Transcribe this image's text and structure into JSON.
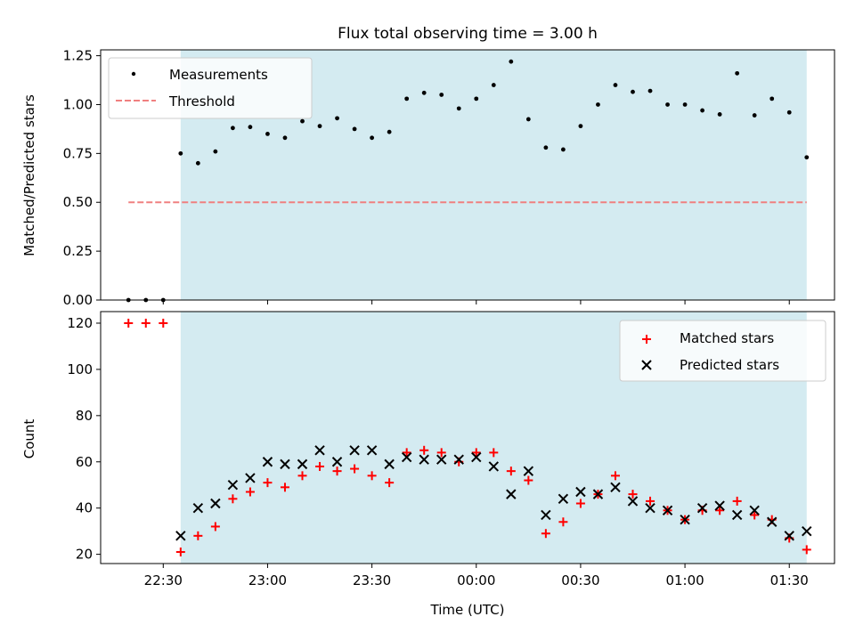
{
  "chart_data": [
    {
      "type": "scatter",
      "title": "Flux total observing time = 3.00 h",
      "xlabel": "",
      "ylabel": "Matched/Predicted stars",
      "ylim": [
        0,
        1.28
      ],
      "yticks": [
        0,
        0.25,
        0.5,
        0.75,
        1.0,
        1.25
      ],
      "ytick_labels": [
        "0.00",
        "0.25",
        "0.50",
        "0.75",
        "1.00",
        "1.25"
      ],
      "legend_placement": "top-left",
      "series": [
        {
          "name": "Measurements",
          "marker": "dot",
          "color": "#000000",
          "x": [
            "22:20",
            "22:25",
            "22:30",
            "22:35",
            "22:40",
            "22:45",
            "22:50",
            "22:55",
            "23:00",
            "23:05",
            "23:10",
            "23:15",
            "23:20",
            "23:25",
            "23:30",
            "23:35",
            "23:40",
            "23:45",
            "23:50",
            "23:55",
            "00:00",
            "00:05",
            "00:10",
            "00:15",
            "00:20",
            "00:25",
            "00:30",
            "00:35",
            "00:40",
            "00:45",
            "00:50",
            "00:55",
            "01:00",
            "01:05",
            "01:10",
            "01:15",
            "01:20",
            "01:25",
            "01:30",
            "01:35"
          ],
          "values": [
            0.0,
            0.0,
            0.0,
            0.75,
            0.7,
            0.76,
            0.88,
            0.885,
            0.85,
            0.83,
            0.915,
            0.89,
            0.93,
            0.875,
            0.83,
            0.86,
            1.03,
            1.06,
            1.05,
            0.98,
            1.03,
            1.1,
            1.22,
            0.925,
            0.78,
            0.77,
            0.89,
            1.0,
            1.1,
            1.065,
            1.07,
            1.0,
            1.0,
            0.97,
            0.95,
            1.16,
            0.945,
            1.03,
            0.96,
            0.73
          ]
        },
        {
          "name": "Threshold",
          "marker": "dashed-line",
          "color": "#f08080",
          "x": [
            "22:20",
            "01:35"
          ],
          "values": [
            0.5,
            0.5
          ]
        }
      ],
      "shaded_span": [
        "22:35",
        "01:35"
      ],
      "shade_color": "#d4ebf1"
    },
    {
      "type": "scatter",
      "xlabel": "Time (UTC)",
      "ylabel": "Count",
      "ylim": [
        16,
        125
      ],
      "yticks": [
        20,
        40,
        60,
        80,
        100,
        120
      ],
      "xlim": [
        "22:12",
        "01:43"
      ],
      "xtick_labels": [
        "22:30",
        "23:00",
        "23:30",
        "00:00",
        "00:30",
        "01:00",
        "01:30"
      ],
      "legend_placement": "top-right",
      "series": [
        {
          "name": "Matched stars",
          "marker": "plus",
          "color": "#ff0000",
          "x": [
            "22:20",
            "22:25",
            "22:30",
            "22:35",
            "22:40",
            "22:45",
            "22:50",
            "22:55",
            "23:00",
            "23:05",
            "23:10",
            "23:15",
            "23:20",
            "23:25",
            "23:30",
            "23:35",
            "23:40",
            "23:45",
            "23:50",
            "23:55",
            "00:00",
            "00:05",
            "00:10",
            "00:15",
            "00:20",
            "00:25",
            "00:30",
            "00:35",
            "00:40",
            "00:45",
            "00:50",
            "00:55",
            "01:00",
            "01:05",
            "01:10",
            "01:15",
            "01:20",
            "01:25",
            "01:30",
            "01:35"
          ],
          "values": [
            120,
            120,
            120,
            21,
            28,
            32,
            44,
            47,
            51,
            49,
            54,
            58,
            56,
            57,
            54,
            51,
            64,
            65,
            64,
            60,
            64,
            64,
            56,
            52,
            29,
            34,
            42,
            46,
            54,
            46,
            43,
            39,
            35,
            39,
            39,
            43,
            37,
            35,
            27,
            22
          ]
        },
        {
          "name": "Predicted stars",
          "marker": "x",
          "color": "#000000",
          "x": [
            "22:35",
            "22:40",
            "22:45",
            "22:50",
            "22:55",
            "23:00",
            "23:05",
            "23:10",
            "23:15",
            "23:20",
            "23:25",
            "23:30",
            "23:35",
            "23:40",
            "23:45",
            "23:50",
            "23:55",
            "00:00",
            "00:05",
            "00:10",
            "00:15",
            "00:20",
            "00:25",
            "00:30",
            "00:35",
            "00:40",
            "00:45",
            "00:50",
            "00:55",
            "01:00",
            "01:05",
            "01:10",
            "01:15",
            "01:20",
            "01:25",
            "01:30",
            "01:35"
          ],
          "values": [
            28,
            40,
            42,
            50,
            53,
            60,
            59,
            59,
            65,
            60,
            65,
            65,
            59,
            62,
            61,
            61,
            61,
            62,
            58,
            46,
            56,
            37,
            44,
            47,
            46,
            49,
            43,
            40,
            39,
            35,
            40,
            41,
            37,
            39,
            34,
            28,
            30
          ]
        }
      ],
      "shaded_span": [
        "22:35",
        "01:35"
      ],
      "shade_color": "#d4ebf1"
    }
  ]
}
